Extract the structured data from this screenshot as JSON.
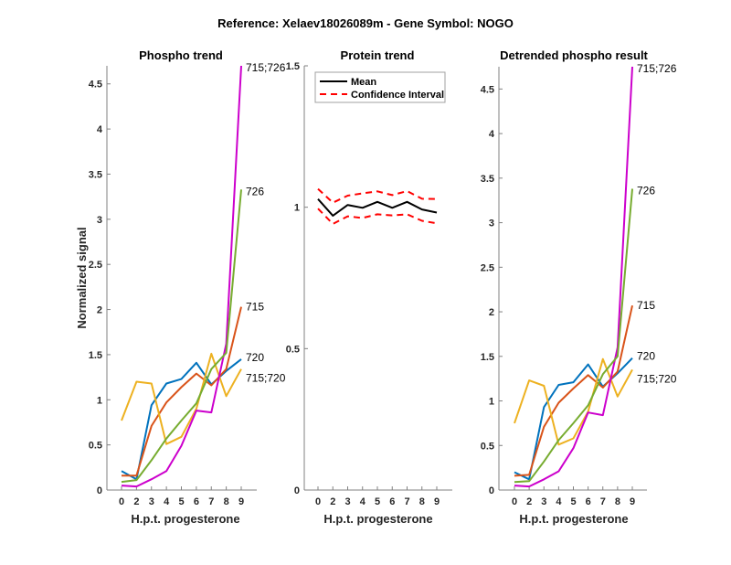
{
  "figure": {
    "suptitle": "Reference:  Xelaev18026089m - Gene Symbol:  NOGO"
  },
  "chart_data": [
    {
      "type": "line",
      "id": "phospho",
      "title": "Phospho trend",
      "xlabel": "H.p.t. progesterone",
      "ylabel": "Normalized signal",
      "x_tick_labels": [
        "0",
        "2",
        "3",
        "4",
        "5",
        "6",
        "7",
        "8",
        "9"
      ],
      "y_ticks": [
        0,
        0.5,
        1,
        1.5,
        2,
        2.5,
        3,
        3.5,
        4,
        4.5
      ],
      "y_tick_labels": [
        "0",
        "0.5",
        "1",
        "1.5",
        "2",
        "2.5",
        "3",
        "3.5",
        "4",
        "4.5"
      ],
      "ylim": [
        0,
        4.7
      ],
      "grid": false,
      "series": [
        {
          "name": "720",
          "color": "#0072BD",
          "values": [
            0.21,
            0.12,
            0.94,
            1.18,
            1.23,
            1.41,
            1.17,
            1.32,
            1.45
          ]
        },
        {
          "name": "715",
          "color": "#D95319",
          "values": [
            0.16,
            0.16,
            0.71,
            0.97,
            1.14,
            1.29,
            1.16,
            1.34,
            2.03
          ]
        },
        {
          "name": "715;720",
          "color": "#EDB120",
          "values": [
            0.77,
            1.2,
            1.18,
            0.51,
            0.59,
            0.9,
            1.51,
            1.04,
            1.34
          ]
        },
        {
          "name": "715;726",
          "color": "#CC00CC",
          "values": [
            0.05,
            0.04,
            0.12,
            0.21,
            0.49,
            0.88,
            0.86,
            1.62,
            4.7
          ]
        },
        {
          "name": "726",
          "color": "#77AC30",
          "values": [
            0.09,
            0.11,
            0.33,
            0.57,
            0.77,
            0.96,
            1.34,
            1.52,
            3.33
          ]
        }
      ]
    },
    {
      "type": "line",
      "id": "protein",
      "title": "Protein trend",
      "xlabel": "H.p.t. progesterone",
      "ylabel": "",
      "x_tick_labels": [
        "0",
        "2",
        "3",
        "4",
        "5",
        "6",
        "7",
        "8",
        "9"
      ],
      "y_ticks": [
        0,
        0.5,
        1,
        1.5
      ],
      "y_tick_labels": [
        "0",
        "0.5",
        "1",
        "1.5"
      ],
      "ylim": [
        0,
        1.5
      ],
      "grid": false,
      "legend": {
        "placement": "top-left",
        "entries": [
          "Mean",
          "Confidence Interval"
        ]
      },
      "series": [
        {
          "name": "Mean",
          "color": "#000000",
          "style": "solid",
          "values": [
            1.029,
            0.97,
            1.008,
            0.998,
            1.019,
            0.998,
            1.019,
            0.992,
            0.981
          ]
        },
        {
          "name": "Confidence Interval (upper)",
          "color": "#FF0000",
          "style": "dashed",
          "values": [
            1.065,
            1.016,
            1.041,
            1.049,
            1.056,
            1.043,
            1.057,
            1.03,
            1.029
          ]
        },
        {
          "name": "Confidence Interval (lower)",
          "color": "#FF0000",
          "style": "dashed",
          "values": [
            0.995,
            0.941,
            0.968,
            0.962,
            0.975,
            0.971,
            0.975,
            0.952,
            0.943
          ]
        }
      ]
    },
    {
      "type": "line",
      "id": "detrended",
      "title": "Detrended phospho result",
      "xlabel": "H.p.t. progesterone",
      "ylabel": "",
      "x_tick_labels": [
        "0",
        "2",
        "3",
        "4",
        "5",
        "6",
        "7",
        "8",
        "9"
      ],
      "y_ticks": [
        0,
        0.5,
        1,
        1.5,
        2,
        2.5,
        3,
        3.5,
        4,
        4.5
      ],
      "y_tick_labels": [
        "0",
        "0.5",
        "1",
        "1.5",
        "2",
        "2.5",
        "3",
        "3.5",
        "4",
        "4.5"
      ],
      "ylim": [
        0,
        4.75
      ],
      "grid": false,
      "series": [
        {
          "name": "720",
          "color": "#0072BD",
          "values": [
            0.2,
            0.12,
            0.93,
            1.18,
            1.21,
            1.41,
            1.16,
            1.31,
            1.48
          ]
        },
        {
          "name": "715",
          "color": "#D95319",
          "values": [
            0.16,
            0.17,
            0.71,
            0.98,
            1.14,
            1.29,
            1.15,
            1.33,
            2.07
          ]
        },
        {
          "name": "715;720",
          "color": "#EDB120",
          "values": [
            0.75,
            1.23,
            1.17,
            0.51,
            0.58,
            0.88,
            1.47,
            1.05,
            1.35
          ]
        },
        {
          "name": "715;726",
          "color": "#CC00CC",
          "values": [
            0.05,
            0.04,
            0.12,
            0.21,
            0.47,
            0.87,
            0.84,
            1.6,
            4.75
          ]
        },
        {
          "name": "726",
          "color": "#77AC30",
          "values": [
            0.09,
            0.1,
            0.32,
            0.56,
            0.75,
            0.95,
            1.3,
            1.5,
            3.38
          ]
        }
      ]
    }
  ]
}
